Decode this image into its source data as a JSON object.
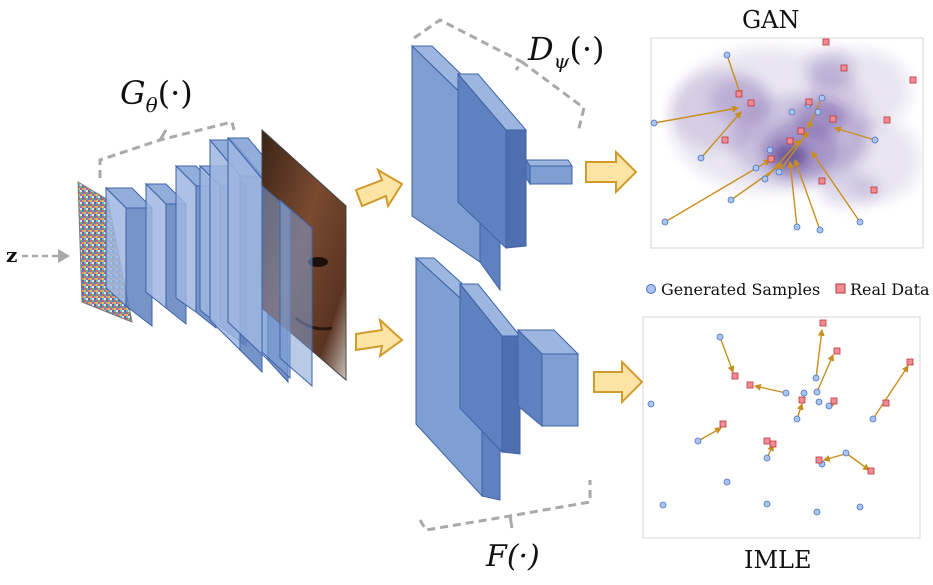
{
  "labels": {
    "generator": "G",
    "generator_sub": "θ",
    "generator_args": "(·)",
    "discriminator": "D",
    "discriminator_sub": "ψ",
    "discriminator_args": "(·)",
    "feature": "F(·)",
    "noise": "z",
    "gan_title": "GAN",
    "imle_title": "IMLE"
  },
  "legend": {
    "generated": "Generated Samples",
    "real": "Real Data"
  },
  "colors": {
    "layer_fill": "#7f9fd3",
    "layer_stroke": "#3d63a8",
    "arrow_fill": "#fbe4a4",
    "arrow_stroke": "#d29a2a",
    "generated_point": "#a9c4ef",
    "real_point": "#f08c92",
    "match_line": "#c98f1e",
    "density": "#4b2d8f",
    "bracket": "#a9a9a9"
  }
}
